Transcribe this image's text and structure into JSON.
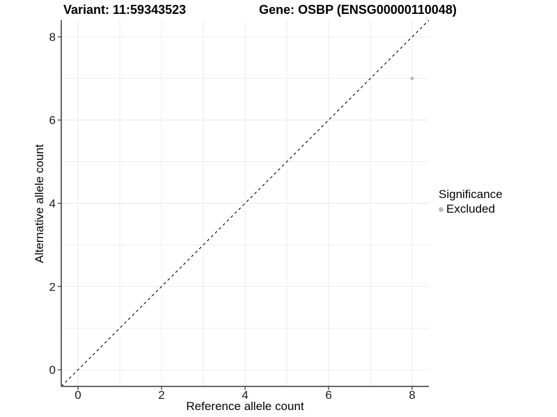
{
  "titles": {
    "variant": "Variant: 11:59343523",
    "gene": "Gene: OSBP (ENSG00000110048)"
  },
  "chart_data": {
    "type": "scatter",
    "xlabel": "Reference allele count",
    "ylabel": "Alternative allele count",
    "xlim": [
      -0.4,
      8.4
    ],
    "ylim": [
      -0.4,
      8.4
    ],
    "x_ticks": [
      0,
      2,
      4,
      6,
      8
    ],
    "y_ticks": [
      0,
      2,
      4,
      6,
      8
    ],
    "grid": "on",
    "grid_interval": 1,
    "identity_line": {
      "slope": 1,
      "intercept": 0,
      "style": "dashed",
      "color": "#000000"
    },
    "series": [
      {
        "name": "Excluded",
        "color": "#bdbdbd",
        "points": [
          {
            "x": 8,
            "y": 7
          }
        ]
      }
    ],
    "legend": {
      "title": "Significance",
      "position": "right",
      "entries": [
        {
          "label": "Excluded",
          "color": "#bdbdbd"
        }
      ]
    }
  },
  "colors": {
    "background": "#ffffff",
    "gridline": "#ebebeb",
    "axis": "#333333",
    "tick": "#333333",
    "tick_label": "#1a1a1a",
    "abline": "#000000",
    "point": "#bdbdbd",
    "text": "#000000"
  }
}
